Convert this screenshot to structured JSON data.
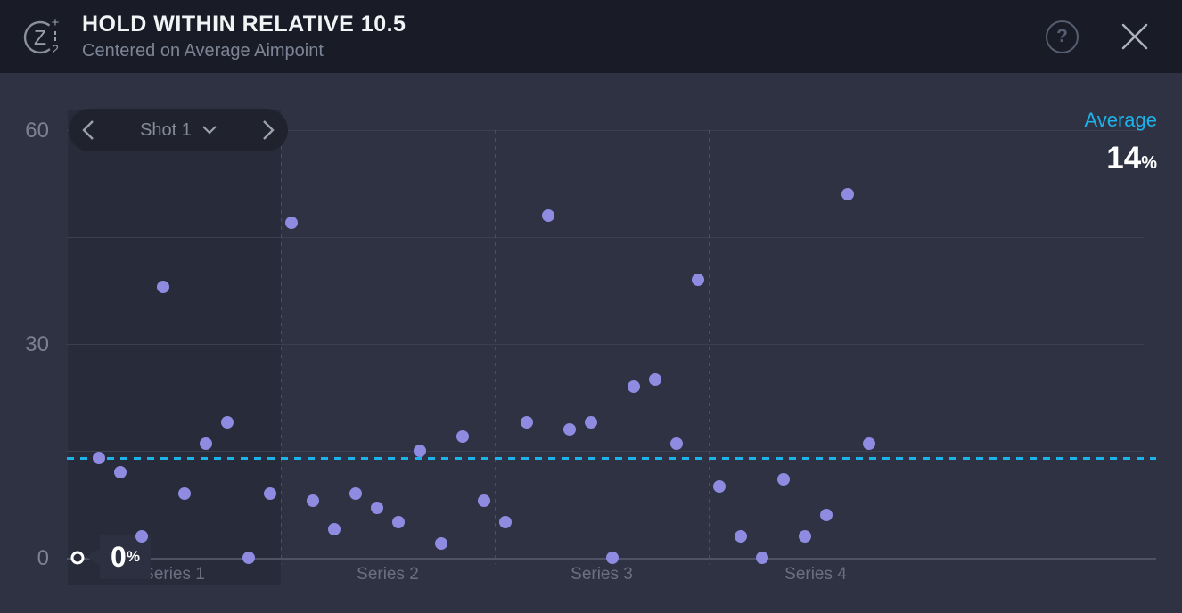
{
  "header": {
    "title": "HOLD WITHIN RELATIVE 10.5",
    "subtitle": "Centered on Average Aimpoint",
    "logo_icon": "z-1-2-drill-logo",
    "help_icon": "question-mark-circle",
    "help_glyph": "?",
    "close_icon": "close-x"
  },
  "shot_selector": {
    "label": "Shot 1",
    "prev_icon": "chevron-left",
    "next_icon": "chevron-right",
    "dropdown_icon": "chevron-down"
  },
  "tooltip": {
    "value": "0",
    "unit": "%"
  },
  "colors": {
    "header_bg": "#191c26",
    "body_bg": "#2e3243",
    "panel_bg": "#282b39",
    "pill_bg": "#20222e",
    "dot": "#8f8be1",
    "average_accent": "#1bb3ea",
    "gridline": "#3b3f4e",
    "axis": "#4e5364",
    "tick_label": "#7b8191",
    "series_label": "#6b7080",
    "title_text": "#f1f3f5",
    "subtitle_text": "#7d8495"
  },
  "chart_data": {
    "type": "scatter",
    "title": "HOLD WITHIN RELATIVE 10.5",
    "subtitle": "Centered on Average Aimpoint",
    "unit": "%",
    "ylim": [
      0,
      60
    ],
    "yticks": [
      "60",
      "30",
      "0"
    ],
    "ytick_values": [
      60,
      30,
      0
    ],
    "grid_values": [
      15,
      30,
      45,
      60
    ],
    "grid_on": true,
    "legend_position": "none",
    "average_label": "Average",
    "average": 14,
    "series": [
      {
        "name": "Series 1",
        "values": [
          0,
          14,
          12,
          3,
          38,
          9,
          16,
          19,
          0,
          9
        ]
      },
      {
        "name": "Series 2",
        "values": [
          47,
          8,
          4,
          9,
          7,
          5,
          15,
          2,
          17,
          8
        ]
      },
      {
        "name": "Series 3",
        "values": [
          5,
          19,
          48,
          18,
          19,
          0,
          24,
          25,
          16,
          39
        ]
      },
      {
        "name": "Series 4",
        "values": [
          10,
          3,
          0,
          11,
          3,
          6,
          51,
          16
        ]
      }
    ],
    "selected": {
      "series_index": 0,
      "shot_index": 0,
      "value": 0,
      "label": "0%"
    }
  }
}
